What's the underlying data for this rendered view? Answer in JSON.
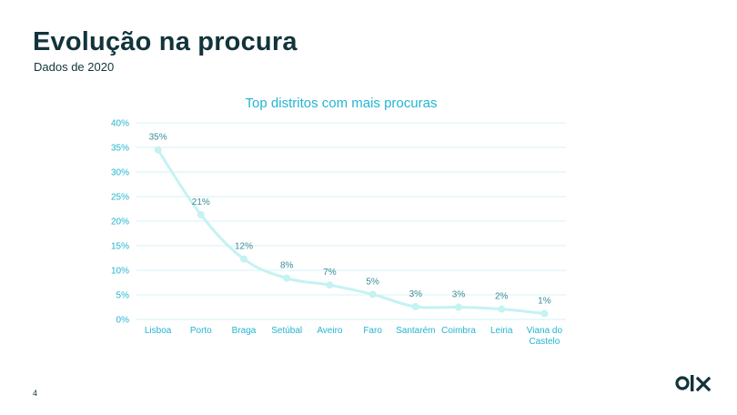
{
  "header": {
    "title": "Evolução na procura",
    "subtitle": "Dados de 2020"
  },
  "footer": {
    "page_number": "4",
    "logo_icon": "olx-logo-icon"
  },
  "colors": {
    "title": "#12343b",
    "accent": "#23b5d3",
    "line": "#c5f2f3",
    "grid": "#d6f3f7",
    "data_label": "#3a8c96"
  },
  "chart_data": {
    "type": "line",
    "title": "Top distritos com mais procuras",
    "xlabel": "",
    "ylabel": "",
    "categories": [
      "Lisboa",
      "Porto",
      "Braga",
      "Setúbal",
      "Aveiro",
      "Faro",
      "Santarém",
      "Coimbra",
      "Leiria",
      "Viana do Castelo"
    ],
    "series": [
      {
        "values": [
          34.5,
          21.3,
          12.3,
          8.4,
          7.0,
          5.1,
          2.6,
          2.5,
          2.1,
          1.2
        ],
        "labels": [
          "35%",
          "21%",
          "12%",
          "8%",
          "7%",
          "5%",
          "3%",
          "3%",
          "2%",
          "1%"
        ]
      }
    ],
    "ylim": [
      0,
      40
    ],
    "yticks": [
      "0%",
      "5%",
      "10%",
      "15%",
      "20%",
      "25%",
      "30%",
      "35%",
      "40%"
    ],
    "grid": true,
    "legend": "none"
  }
}
